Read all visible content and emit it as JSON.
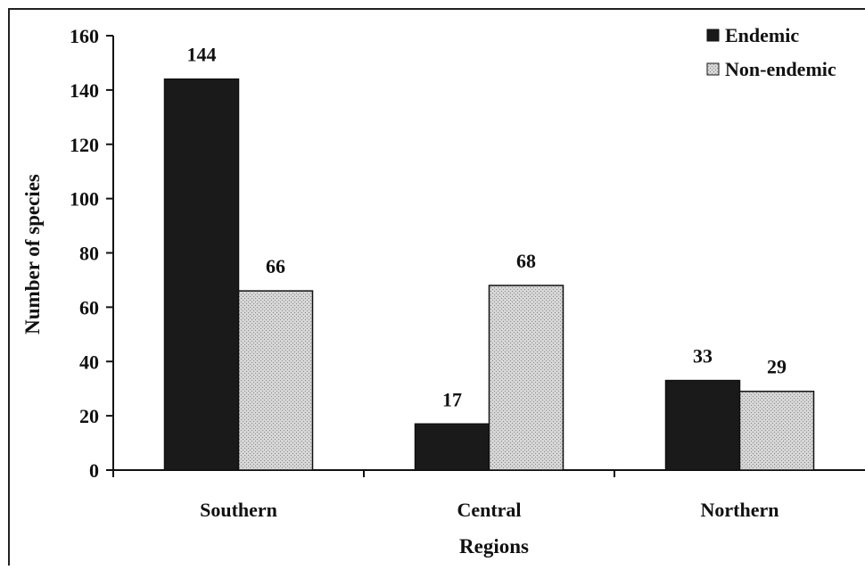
{
  "chart_data": {
    "type": "bar",
    "title": "",
    "xlabel": "Regions",
    "ylabel": "Number of species",
    "ylim": [
      0,
      160
    ],
    "yticks": [
      0,
      20,
      40,
      60,
      80,
      100,
      120,
      140,
      160
    ],
    "categories": [
      "Southern",
      "Central",
      "Northern"
    ],
    "series": [
      {
        "name": "Endemic",
        "values": [
          144,
          17,
          33
        ],
        "color": "#1a1a1a"
      },
      {
        "name": "Non-endemic",
        "values": [
          66,
          68,
          29
        ],
        "color": "#c8c8c8"
      }
    ],
    "legend_position": "top-right",
    "grid": false,
    "data_labels": true
  }
}
